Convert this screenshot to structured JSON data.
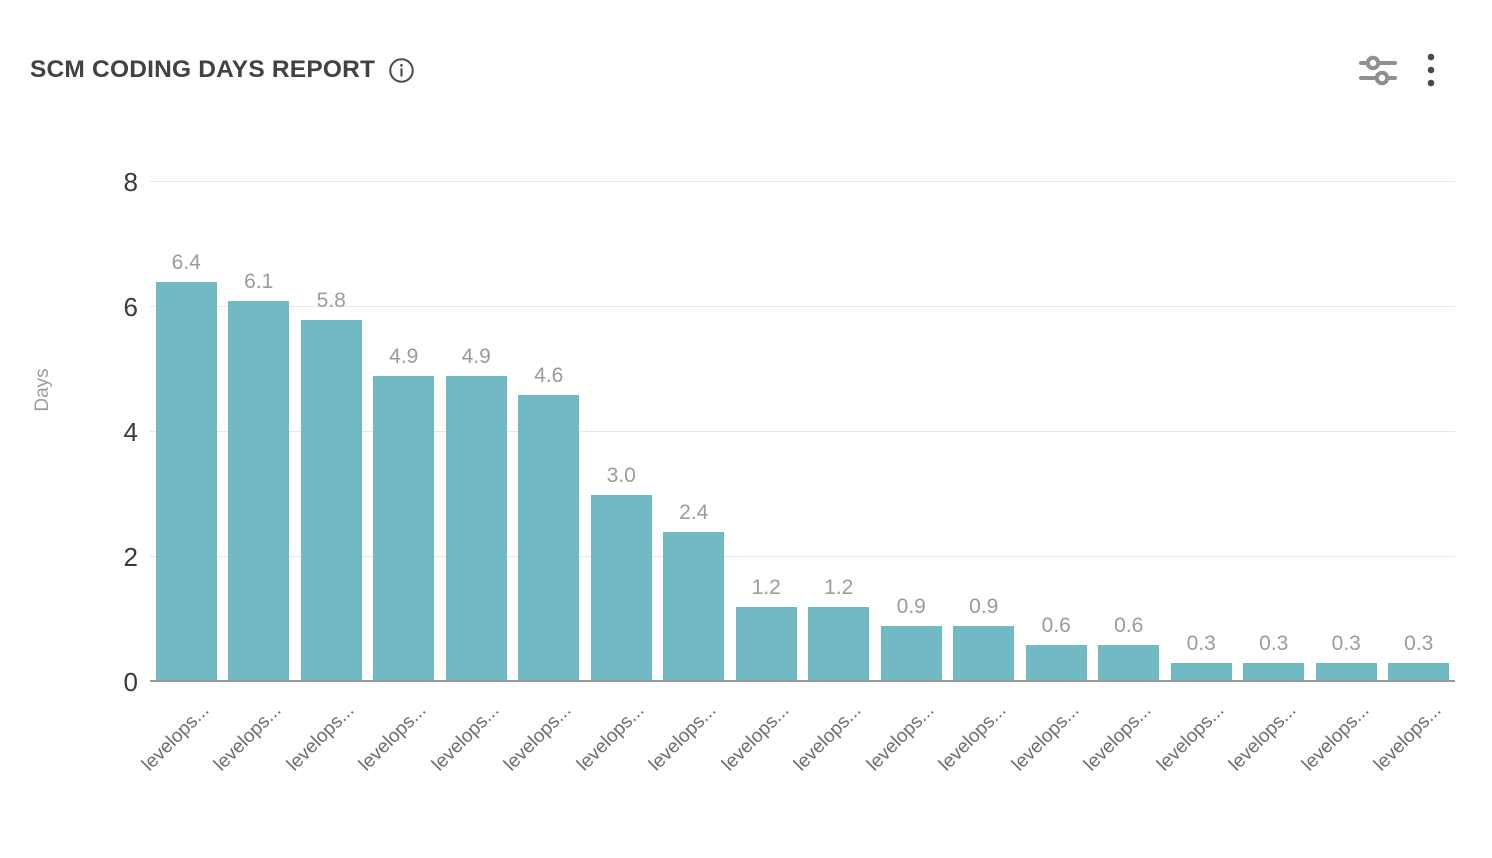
{
  "header": {
    "title": "SCM CODING DAYS REPORT"
  },
  "chart_data": {
    "type": "bar",
    "title": "SCM CODING DAYS REPORT",
    "xlabel": "",
    "ylabel": "Days",
    "ylim": [
      0,
      8
    ],
    "yticks": [
      0,
      2,
      4,
      6,
      8
    ],
    "grid": true,
    "legend": false,
    "categories": [
      "levelops...",
      "levelops...",
      "levelops...",
      "levelops...",
      "levelops...",
      "levelops...",
      "levelops...",
      "levelops...",
      "levelops...",
      "levelops...",
      "levelops...",
      "levelops...",
      "levelops...",
      "levelops...",
      "levelops...",
      "levelops...",
      "levelops...",
      "levelops..."
    ],
    "values": [
      6.4,
      6.1,
      5.8,
      4.9,
      4.9,
      4.6,
      3.0,
      2.4,
      1.2,
      1.2,
      0.9,
      0.9,
      0.6,
      0.6,
      0.3,
      0.3,
      0.3,
      0.3
    ],
    "value_labels": [
      "6.4",
      "6.1",
      "5.8",
      "4.9",
      "4.9",
      "4.6",
      "3.0",
      "2.4",
      "1.2",
      "1.2",
      "0.9",
      "0.9",
      "0.6",
      "0.6",
      "0.3",
      "0.3",
      "0.3",
      "0.3"
    ]
  },
  "colors": {
    "bar": "#71b9c3",
    "grid_line": "#e7e7e7",
    "axis_line": "#999999",
    "tick_label": "#3a3a3a",
    "value_label": "#9b9b9b",
    "x_label": "#6e6e6e",
    "title": "#424242",
    "icon_gray": "#8f8f8f",
    "icon_dark": "#4a4a4a",
    "muted": "#9c9c9c"
  }
}
